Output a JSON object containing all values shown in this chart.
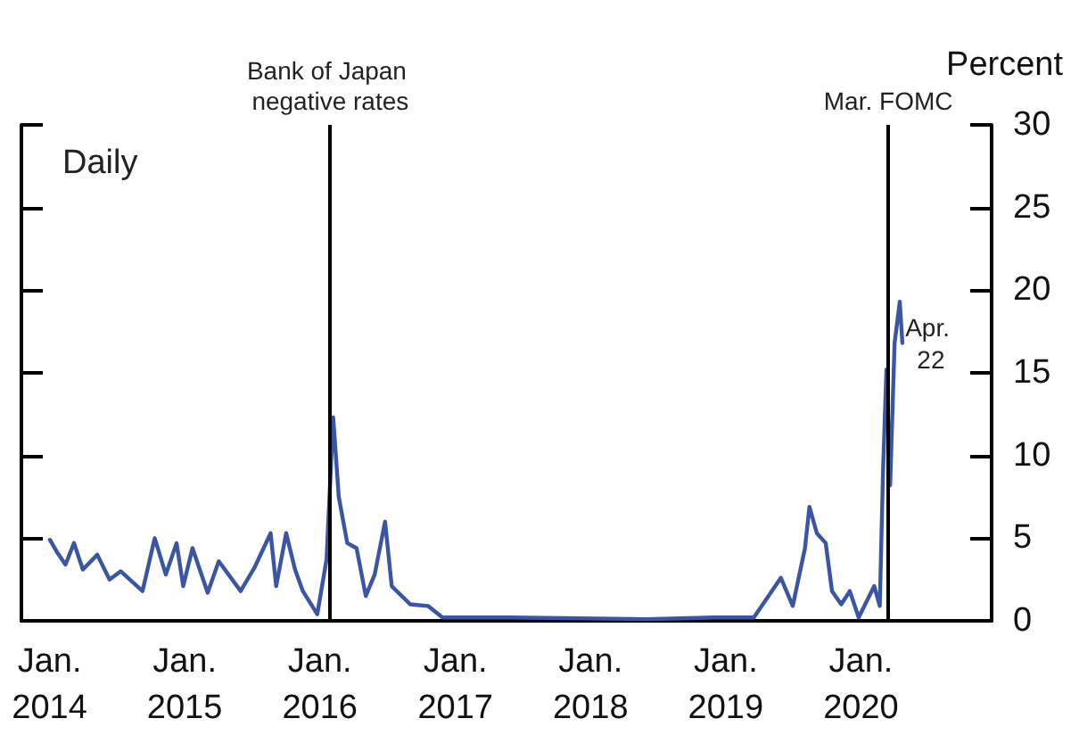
{
  "chart_data": {
    "type": "line",
    "ylabel": "Percent",
    "annotations": [
      "Daily",
      {
        "text": "Apr. 22",
        "x": "2020-04-22",
        "y": 16.8
      }
    ],
    "x": [
      "2014-01-02",
      "2014-01-20",
      "2014-02-13",
      "2014-03-08",
      "2014-04-01",
      "2014-05-10",
      "2014-06-12",
      "2014-07-12",
      "2014-09-09",
      "2014-10-12",
      "2014-11-11",
      "2014-12-10",
      "2014-12-28",
      "2015-01-22",
      "2015-03-04",
      "2015-04-03",
      "2015-06-01",
      "2015-07-08",
      "2015-08-21",
      "2015-09-05",
      "2015-10-02",
      "2015-10-26",
      "2015-11-16",
      "2015-12-25",
      "2016-01-19",
      "2016-02-06",
      "2016-02-21",
      "2016-03-15",
      "2016-04-09",
      "2016-05-04",
      "2016-05-28",
      "2016-06-25",
      "2016-07-13",
      "2016-09-01",
      "2016-10-19",
      "2016-11-27",
      "2017-06-01",
      "2018-06-01",
      "2018-12-01",
      "2019-03-18",
      "2019-05-30",
      "2019-07-01",
      "2019-08-03",
      "2019-08-15",
      "2019-09-04",
      "2019-09-28",
      "2019-10-15",
      "2019-11-09",
      "2019-12-02",
      "2019-12-26",
      "2020-02-06",
      "2020-02-21",
      "2020-03-01",
      "2020-03-10",
      "2020-03-20",
      "2020-04-01",
      "2020-04-15",
      "2020-04-22"
    ],
    "series": [
      {
        "color": "#3a55a4",
        "values": [
          4.9,
          4.2,
          3.4,
          4.7,
          3.1,
          4.0,
          2.5,
          3.0,
          1.8,
          5.0,
          2.8,
          4.7,
          2.1,
          4.4,
          1.7,
          3.6,
          1.8,
          3.2,
          5.3,
          2.1,
          5.3,
          3.1,
          1.8,
          0.4,
          3.7,
          12.3,
          7.5,
          4.7,
          4.4,
          1.5,
          2.8,
          6.0,
          2.1,
          1.0,
          0.9,
          0.2,
          0.2,
          0.1,
          0.2,
          0.2,
          2.6,
          0.9,
          4.4,
          6.9,
          5.3,
          4.7,
          1.8,
          1.0,
          1.8,
          0.2,
          2.1,
          0.9,
          9.2,
          15.2,
          8.2,
          16.8,
          19.3,
          16.8
        ]
      }
    ],
    "xlim": [
      "2013-10-17",
      "2020-12-19"
    ],
    "xticks": [
      {
        "value": "2014-01-01",
        "label": "Jan.\n2014"
      },
      {
        "value": "2015-01-01",
        "label": "Jan.\n2015"
      },
      {
        "value": "2016-01-01",
        "label": "Jan.\n2016"
      },
      {
        "value": "2017-01-01",
        "label": "Jan.\n2017"
      },
      {
        "value": "2018-01-01",
        "label": "Jan.\n2018"
      },
      {
        "value": "2019-01-01",
        "label": "Jan.\n2019"
      },
      {
        "value": "2020-01-01",
        "label": "Jan.\n2020"
      }
    ],
    "ylim": [
      0,
      30
    ],
    "yticks": [
      0,
      5,
      10,
      15,
      20,
      25,
      30
    ],
    "ref_lines": [
      {
        "axis": "x",
        "value": "2016-01-29",
        "label": "Bank of Japan negative rates",
        "color": "#000000"
      },
      {
        "axis": "x",
        "value": "2020-03-15",
        "label": "Mar. FOMC",
        "color": "#000000"
      }
    ],
    "grid": false,
    "marker": "none",
    "line_style": "solid"
  }
}
